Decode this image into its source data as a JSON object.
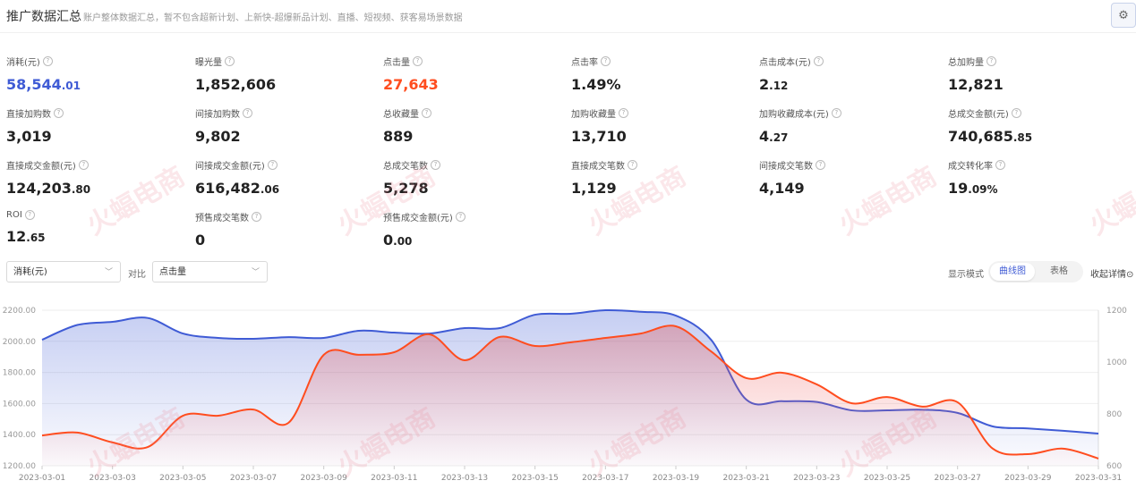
{
  "header": {
    "title": "推广数据汇总",
    "subtitle": "账户整体数据汇总，暂不包含超新计划、上新快-超爆新品计划、直播、短视频、获客易场景数据",
    "settings_icon": "gear-icon"
  },
  "metrics": [
    {
      "label": "消耗(元)",
      "int": "58,544",
      "dec": ".01",
      "color": "#3f5bd5"
    },
    {
      "label": "曝光量",
      "int": "1,852,606",
      "dec": ""
    },
    {
      "label": "点击量",
      "int": "27,643",
      "dec": "",
      "color": "#ff4d1f"
    },
    {
      "label": "点击率",
      "int": "1.49%",
      "dec": ""
    },
    {
      "label": "点击成本(元)",
      "int": "2",
      "dec": ".12"
    },
    {
      "label": "总加购量",
      "int": "12,821",
      "dec": ""
    },
    {
      "label": "直接加购数",
      "int": "3,019",
      "dec": ""
    },
    {
      "label": "间接加购数",
      "int": "9,802",
      "dec": ""
    },
    {
      "label": "总收藏量",
      "int": "889",
      "dec": ""
    },
    {
      "label": "加购收藏量",
      "int": "13,710",
      "dec": ""
    },
    {
      "label": "加购收藏成本(元)",
      "int": "4",
      "dec": ".27"
    },
    {
      "label": "总成交金额(元)",
      "int": "740,685",
      "dec": ".85"
    },
    {
      "label": "直接成交金额(元)",
      "int": "124,203",
      "dec": ".80"
    },
    {
      "label": "间接成交金额(元)",
      "int": "616,482",
      "dec": ".06"
    },
    {
      "label": "总成交笔数",
      "int": "5,278",
      "dec": ""
    },
    {
      "label": "直接成交笔数",
      "int": "1,129",
      "dec": ""
    },
    {
      "label": "间接成交笔数",
      "int": "4,149",
      "dec": ""
    },
    {
      "label": "成交转化率",
      "int": "19",
      "dec": ".09%"
    },
    {
      "label": "ROI",
      "int": "12",
      "dec": ".65"
    },
    {
      "label": "预售成交笔数",
      "int": "0",
      "dec": ""
    },
    {
      "label": "预售成交金额(元)",
      "int": "0",
      "dec": ".00"
    }
  ],
  "controls": {
    "primary": "消耗(元)",
    "compare_label": "对比",
    "secondary": "点击量",
    "mode_label": "显示模式",
    "mode_chart": "曲线图",
    "mode_table": "表格",
    "collapse": "收起详情"
  },
  "watermark": "火蝠电商 HOTFOR E-COMMERCE",
  "chart_data": {
    "type": "area",
    "x": [
      "2023-03-01",
      "2023-03-02",
      "2023-03-03",
      "2023-03-04",
      "2023-03-05",
      "2023-03-06",
      "2023-03-07",
      "2023-03-08",
      "2023-03-09",
      "2023-03-10",
      "2023-03-11",
      "2023-03-12",
      "2023-03-13",
      "2023-03-14",
      "2023-03-15",
      "2023-03-16",
      "2023-03-17",
      "2023-03-18",
      "2023-03-19",
      "2023-03-20",
      "2023-03-21",
      "2023-03-22",
      "2023-03-23",
      "2023-03-24",
      "2023-03-25",
      "2023-03-26",
      "2023-03-27",
      "2023-03-28",
      "2023-03-29",
      "2023-03-30",
      "2023-03-31"
    ],
    "xticks": [
      "2023-03-01",
      "2023-03-03",
      "2023-03-05",
      "2023-03-07",
      "2023-03-09",
      "2023-03-11",
      "2023-03-13",
      "2023-03-15",
      "2023-03-17",
      "2023-03-19",
      "2023-03-21",
      "2023-03-23",
      "2023-03-25",
      "2023-03-27",
      "2023-03-29",
      "2023-03-31"
    ],
    "y_left": {
      "lim": [
        1200,
        2200
      ],
      "ticks": [
        "1200.00",
        "1400.00",
        "1600.00",
        "1800.00",
        "2000.00",
        "2200.00"
      ]
    },
    "y_right": {
      "lim": [
        600,
        1200
      ],
      "ticks": [
        "600",
        "800",
        "1000",
        "1200"
      ]
    },
    "grid": true,
    "series": [
      {
        "name": "消耗(元)",
        "axis": "left",
        "color": "#3f5bd5",
        "values": [
          2010,
          2105,
          2125,
          2150,
          2050,
          2022,
          2016,
          2027,
          2022,
          2068,
          2056,
          2050,
          2085,
          2085,
          2171,
          2177,
          2200,
          2190,
          2165,
          2010,
          1625,
          1615,
          1610,
          1556,
          1556,
          1560,
          1540,
          1453,
          1440,
          1425,
          1407
        ]
      },
      {
        "name": "点击量",
        "axis": "right",
        "color": "#ff4d1f",
        "values": [
          717,
          728,
          690,
          672,
          793,
          793,
          817,
          766,
          1028,
          1028,
          1038,
          1107,
          1007,
          1097,
          1062,
          1076,
          1093,
          1110,
          1138,
          1041,
          938,
          959,
          914,
          841,
          865,
          828,
          845,
          666,
          645,
          666,
          628
        ]
      }
    ]
  }
}
